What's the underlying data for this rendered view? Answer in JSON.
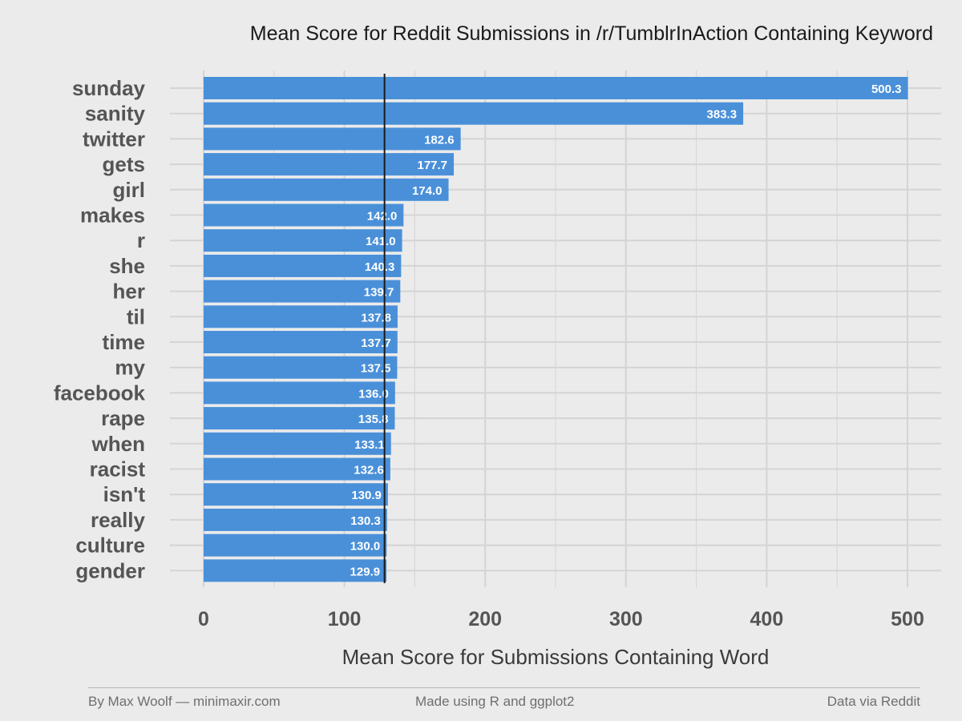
{
  "chart_data": {
    "type": "bar",
    "orientation": "horizontal",
    "title": "Mean Score for Reddit Submissions in /r/TumblrInAction Containing Keyword",
    "xlabel": "Mean Score for Submissions Containing Word",
    "ylabel": "",
    "categories": [
      "sunday",
      "sanity",
      "twitter",
      "gets",
      "girl",
      "makes",
      "r",
      "she",
      "her",
      "til",
      "time",
      "my",
      "facebook",
      "rape",
      "when",
      "racist",
      "isn't",
      "really",
      "culture",
      "gender"
    ],
    "values": [
      500.3,
      383.3,
      182.6,
      177.7,
      174.0,
      142.0,
      141.0,
      140.3,
      139.7,
      137.8,
      137.7,
      137.5,
      136.0,
      135.8,
      133.1,
      132.6,
      130.9,
      130.3,
      130.0,
      129.9
    ],
    "value_labels": [
      "500.3",
      "383.3",
      "182.6",
      "177.7",
      "174.0",
      "142.0",
      "141.0",
      "140.3",
      "139.7",
      "137.8",
      "137.7",
      "137.5",
      "136.0",
      "135.8",
      "133.1",
      "132.6",
      "130.9",
      "130.3",
      "130.0",
      "129.9"
    ],
    "reference_line": 128.5,
    "xticks": [
      "0",
      "100",
      "200",
      "300",
      "400",
      "500"
    ],
    "xtick_values": [
      0,
      100,
      200,
      300,
      400,
      500
    ],
    "xlim": [
      0,
      500
    ],
    "grid": true,
    "legend": "none",
    "colors": {
      "bar": "#4a90d9",
      "background": "#ebebeb",
      "grid": "#d4d4d4",
      "reference_line": "#1a1a1a",
      "label_inside": "#ffffff",
      "label_outside": "#3a7fc8"
    }
  },
  "footer": {
    "left": "By Max Woolf — minimaxir.com",
    "center": "Made using R and ggplot2",
    "right": "Data via Reddit"
  }
}
